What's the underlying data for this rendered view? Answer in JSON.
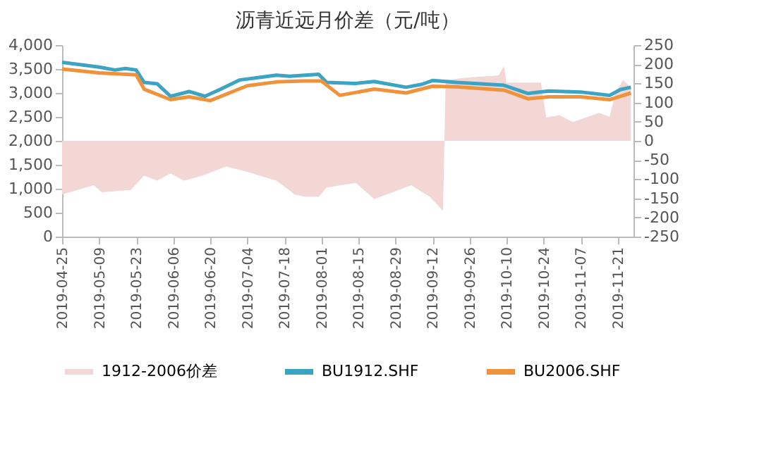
{
  "chart_data": {
    "type": "line",
    "title": "沥青近远月价差（元/吨）",
    "xlim": [
      "2019-04-25",
      "2019-11-27"
    ],
    "xticks": [
      "2019-04-25",
      "2019-05-09",
      "2019-05-23",
      "2019-06-06",
      "2019-06-20",
      "2019-07-04",
      "2019-07-18",
      "2019-08-01",
      "2019-08-15",
      "2019-08-29",
      "2019-09-12",
      "2019-09-26",
      "2019-10-10",
      "2019-10-24",
      "2019-11-07",
      "2019-11-21"
    ],
    "ylim": [
      0,
      4000
    ],
    "yticks": [
      {
        "value": 0,
        "label": "0"
      },
      {
        "value": 500,
        "label": "500"
      },
      {
        "value": 1000,
        "label": "1,000"
      },
      {
        "value": 1500,
        "label": "1,500"
      },
      {
        "value": 2000,
        "label": "2,000"
      },
      {
        "value": 2500,
        "label": "2,500"
      },
      {
        "value": 3000,
        "label": "3,000"
      },
      {
        "value": 3500,
        "label": "3,500"
      },
      {
        "value": 4000,
        "label": "4,000"
      }
    ],
    "y2lim": [
      -250,
      250
    ],
    "y2ticks": [
      -250,
      -200,
      -150,
      -100,
      -50,
      0,
      50,
      100,
      150,
      200,
      250
    ],
    "grid": false,
    "legend": "bottom",
    "marker": "none",
    "line_style": "solid",
    "series": [
      {
        "name": "1912-2006价差",
        "type": "area",
        "axis": "y2",
        "color": "#f2d7d5",
        "x": [
          "2019-04-25",
          "2019-05-07",
          "2019-05-10",
          "2019-05-21",
          "2019-05-26",
          "2019-05-31",
          "2019-06-05",
          "2019-06-10",
          "2019-06-17",
          "2019-06-26",
          "2019-07-03",
          "2019-07-15",
          "2019-07-22",
          "2019-07-26",
          "2019-07-31",
          "2019-08-03",
          "2019-08-14",
          "2019-08-21",
          "2019-08-28",
          "2019-09-04",
          "2019-09-11",
          "2019-09-16",
          "2019-09-17",
          "2019-09-25",
          "2019-10-07",
          "2019-10-09",
          "2019-10-10",
          "2019-10-23",
          "2019-10-25",
          "2019-10-30",
          "2019-11-04",
          "2019-11-09",
          "2019-11-14",
          "2019-11-18",
          "2019-11-20",
          "2019-11-23",
          "2019-11-26"
        ],
        "values": [
          -140,
          -116,
          -134,
          -128,
          -91,
          -104,
          -85,
          -104,
          -91,
          -67,
          -79,
          -104,
          -140,
          -146,
          -146,
          -122,
          -110,
          -152,
          -134,
          -116,
          -146,
          -183,
          159,
          165,
          171,
          195,
          152,
          152,
          61,
          67,
          49,
          61,
          73,
          63,
          122,
          159,
          140
        ]
      },
      {
        "name": "BU1912.SHF",
        "axis": "y",
        "color": "#3ba3c3",
        "x": [
          "2019-04-25",
          "2019-05-09",
          "2019-05-15",
          "2019-05-19",
          "2019-05-23",
          "2019-05-26",
          "2019-05-31",
          "2019-06-05",
          "2019-06-12",
          "2019-06-18",
          "2019-06-24",
          "2019-07-01",
          "2019-07-08",
          "2019-07-15",
          "2019-07-20",
          "2019-07-31",
          "2019-08-03",
          "2019-08-14",
          "2019-08-21",
          "2019-09-02",
          "2019-09-08",
          "2019-09-12",
          "2019-09-21",
          "2019-10-09",
          "2019-10-18",
          "2019-10-26",
          "2019-11-07",
          "2019-11-18",
          "2019-11-22",
          "2019-11-26"
        ],
        "values": [
          3640,
          3540,
          3480,
          3510,
          3480,
          3220,
          3190,
          2930,
          3030,
          2930,
          3080,
          3270,
          3320,
          3370,
          3350,
          3390,
          3220,
          3200,
          3240,
          3120,
          3180,
          3260,
          3220,
          3160,
          2990,
          3040,
          3020,
          2950,
          3070,
          3120
        ]
      },
      {
        "name": "BU2006.SHF",
        "axis": "y",
        "color": "#f0923a",
        "x": [
          "2019-04-25",
          "2019-05-09",
          "2019-05-23",
          "2019-05-26",
          "2019-06-05",
          "2019-06-12",
          "2019-06-20",
          "2019-07-04",
          "2019-07-15",
          "2019-07-25",
          "2019-08-01",
          "2019-08-08",
          "2019-08-21",
          "2019-09-02",
          "2019-09-12",
          "2019-09-21",
          "2019-10-09",
          "2019-10-18",
          "2019-10-26",
          "2019-11-07",
          "2019-11-18",
          "2019-11-26"
        ],
        "values": [
          3500,
          3420,
          3380,
          3080,
          2860,
          2920,
          2840,
          3150,
          3230,
          3250,
          3250,
          2950,
          3080,
          3000,
          3140,
          3130,
          3060,
          2880,
          2920,
          2920,
          2860,
          3000
        ]
      }
    ]
  }
}
